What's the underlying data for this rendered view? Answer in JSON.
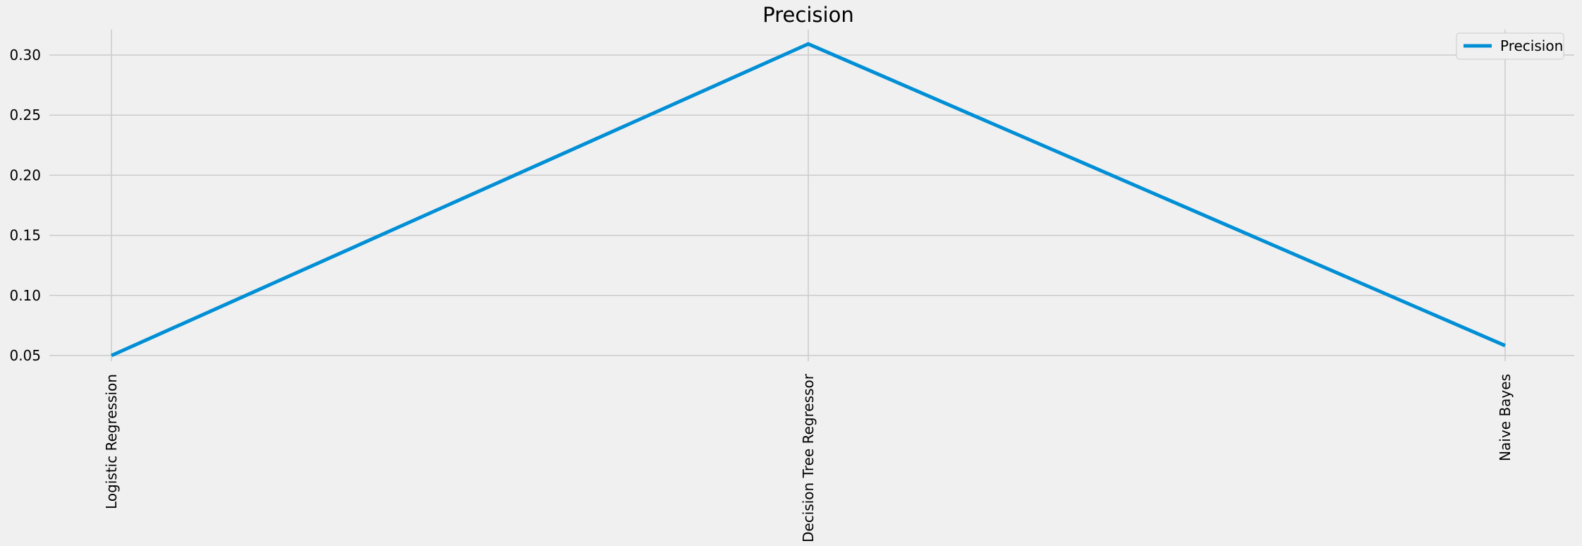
{
  "chart_data": {
    "type": "line",
    "title": "Precision",
    "categories": [
      "Logistic Regression",
      "Decision Tree Regressor",
      "Naive Bayes"
    ],
    "series": [
      {
        "name": "Precision",
        "values": [
          0.05,
          0.3092,
          0.0583
        ],
        "color": "#008fd5"
      }
    ],
    "yticks": [
      "0.05",
      "0.10",
      "0.15",
      "0.20",
      "0.25",
      "0.30"
    ],
    "ylim": [
      0.03,
      0.32
    ],
    "grid": true,
    "legend": "top-right"
  }
}
